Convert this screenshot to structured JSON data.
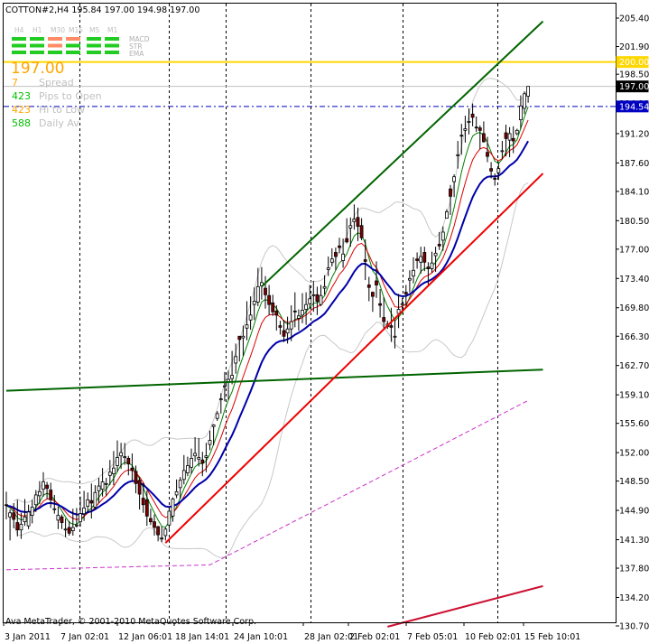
{
  "header": {
    "symbol_line": "COTTON#2,H4  195.84 197.00 194.98 197.00"
  },
  "panel": {
    "timeframes": [
      "H4",
      "H1",
      "M30",
      "M15",
      "M5",
      "M1"
    ],
    "indicators": [
      "MACD",
      "STR",
      "EMA"
    ],
    "price_big": "197.00",
    "rows": [
      {
        "value": "7",
        "label": "Spread",
        "value_color": "#ffa500"
      },
      {
        "value": "423",
        "label": "Pips to Open",
        "value_color": "#00c000"
      },
      {
        "value": "423",
        "label": "Hi to Low",
        "value_color": "#ffa500"
      },
      {
        "value": "588",
        "label": "Daily Av",
        "value_color": "#00c000"
      }
    ]
  },
  "footer": {
    "copyright": "Ava MetaTrader, © 2001-2010 MetaQuotes Software Corp."
  },
  "chart_data": {
    "type": "candlestick",
    "y_ticks": [
      "205.40",
      "201.90",
      "198.50",
      "194.90",
      "191.20",
      "187.60",
      "184.10",
      "180.50",
      "177.00",
      "173.40",
      "169.80",
      "166.30",
      "162.70",
      "159.10",
      "155.60",
      "152.00",
      "148.50",
      "144.90",
      "141.30",
      "137.80",
      "134.20",
      "130.70"
    ],
    "ylim": [
      130.7,
      205.4
    ],
    "x_ticks": [
      "3 Jan 2011",
      "7 Jan 02:01",
      "12 Jan 06:01",
      "18 Jan 14:01",
      "24 Jan 10:01",
      "28 Jan 02:01",
      "2 Feb 02:01",
      "7 Feb 05:01",
      "10 Feb 02:01",
      "15 Feb 10:01"
    ],
    "price_labels": [
      {
        "text": "200.00",
        "value": 200.0,
        "color": "#ffd700",
        "text_color": "#ffffff"
      },
      {
        "text": "197.00",
        "value": 197.0,
        "color": "#000000",
        "text_color": "#ffffff"
      },
      {
        "text": "194.54",
        "value": 194.54,
        "color": "#0000c0",
        "text_color": "#ffffff"
      }
    ],
    "hlines": [
      {
        "value": 200.0,
        "color": "#ffd700",
        "style": "solid"
      },
      {
        "value": 197.0,
        "color": "#c0c0c0",
        "style": "solid"
      },
      {
        "value": 194.54,
        "color": "#0000c0",
        "style": "dashdot"
      }
    ],
    "colors": {
      "bull": "#ffffff",
      "bear": "#800000",
      "wick": "#000000",
      "ma_fast": "#008000",
      "ma_mid": "#dd0000",
      "ma_slow": "#0000aa",
      "bands": "#c8c8c8",
      "ma_long": "#cc33cc",
      "channel": "#006400",
      "trend_red": "#ee0000",
      "trend_crimson": "#cc1133"
    },
    "closes": [
      145.5,
      144.6,
      143.8,
      142.5,
      143.2,
      144.1,
      144.7,
      145.3,
      146.8,
      147.2,
      148.4,
      147.6,
      146.2,
      145.1,
      144.3,
      143.4,
      142.6,
      142.1,
      142.8,
      143.1,
      144.5,
      145.2,
      146.2,
      145.8,
      147.1,
      147.9,
      148.4,
      148.2,
      149.6,
      150.1,
      151.4,
      152.0,
      151.5,
      150.6,
      149.8,
      148.2,
      146.9,
      145.6,
      144.2,
      143.5,
      142.8,
      141.9,
      141.4,
      142.6,
      144.8,
      146.3,
      147.2,
      148.6,
      149.8,
      150.4,
      151.3,
      151.9,
      151.4,
      150.7,
      151.6,
      153.5,
      155.4,
      156.8,
      158.6,
      160.2,
      161.0,
      161.5,
      163.8,
      165.9,
      166.3,
      167.7,
      168.9,
      170.6,
      172.4,
      172.9,
      171.4,
      170.2,
      169.3,
      168.9,
      167.4,
      166.3,
      167.2,
      168.1,
      169.3,
      168.8,
      169.5,
      170.2,
      170.9,
      171.4,
      170.6,
      171.3,
      172.4,
      174.7,
      175.8,
      176.1,
      177.2,
      176.4,
      177.9,
      179.9,
      180.7,
      179.8,
      178.4,
      175.5,
      172.3,
      171.2,
      172.6,
      170.1,
      168.1,
      167.8,
      167.4,
      166.3,
      169.6,
      170.3,
      171.5,
      173.4,
      174.4,
      175.6,
      176.1,
      175.4,
      174.6,
      175.3,
      176.5,
      177.4,
      179.1,
      181.6,
      183.5,
      185.9,
      188.6,
      190.9,
      191.8,
      192.7,
      193.2,
      191.9,
      191.6,
      190.2,
      188.4,
      186.6,
      185.6,
      186.9,
      189.1,
      190.6,
      191.2,
      190.3,
      191.6,
      194.6,
      196.1,
      197.0
    ],
    "candles": [
      {
        "o": 145.6,
        "h": 147.2,
        "l": 143.8,
        "c": 145.5
      },
      {
        "o": 144.1,
        "h": 145.0,
        "l": 141.2,
        "c": 144.6
      },
      {
        "o": 144.6,
        "h": 145.8,
        "l": 142.7,
        "c": 143.8
      },
      {
        "o": 143.4,
        "h": 146.2,
        "l": 141.7,
        "c": 142.5
      },
      {
        "o": 142.5,
        "h": 144.6,
        "l": 141.4,
        "c": 143.2
      },
      {
        "o": 143.5,
        "h": 146.3,
        "l": 143.0,
        "c": 144.1
      },
      {
        "o": 143.0,
        "h": 145.6,
        "l": 142.6,
        "c": 144.7
      },
      {
        "o": 144.3,
        "h": 146.2,
        "l": 143.3,
        "c": 145.3
      },
      {
        "o": 145.6,
        "h": 147.4,
        "l": 144.7,
        "c": 146.8
      },
      {
        "o": 146.7,
        "h": 148.5,
        "l": 145.7,
        "c": 147.2
      },
      {
        "o": 147.5,
        "h": 149.6,
        "l": 146.6,
        "c": 148.4
      },
      {
        "o": 148.0,
        "h": 148.4,
        "l": 146.3,
        "c": 147.6
      },
      {
        "o": 147.4,
        "h": 148.3,
        "l": 145.2,
        "c": 146.2
      },
      {
        "o": 145.1,
        "h": 146.8,
        "l": 144.5,
        "c": 145.1
      },
      {
        "o": 143.7,
        "h": 145.4,
        "l": 142.6,
        "c": 144.3
      },
      {
        "o": 144.1,
        "h": 144.4,
        "l": 142.6,
        "c": 143.4
      },
      {
        "o": 142.6,
        "h": 143.9,
        "l": 141.6,
        "c": 142.6
      },
      {
        "o": 142.8,
        "h": 143.6,
        "l": 141.8,
        "c": 142.1
      },
      {
        "o": 142.4,
        "h": 145.1,
        "l": 141.8,
        "c": 142.8
      },
      {
        "o": 143.0,
        "h": 145.2,
        "l": 142.8,
        "c": 143.1
      },
      {
        "o": 143.5,
        "h": 146.6,
        "l": 142.9,
        "c": 144.5
      },
      {
        "o": 144.5,
        "h": 147.3,
        "l": 143.6,
        "c": 145.2
      },
      {
        "o": 145.4,
        "h": 147.1,
        "l": 144.6,
        "c": 146.2
      },
      {
        "o": 146.1,
        "h": 148.2,
        "l": 143.9,
        "c": 145.8
      },
      {
        "o": 145.3,
        "h": 148.0,
        "l": 145.0,
        "c": 147.1
      },
      {
        "o": 147.3,
        "h": 148.9,
        "l": 145.8,
        "c": 147.9
      },
      {
        "o": 147.5,
        "h": 150.1,
        "l": 146.6,
        "c": 148.4
      },
      {
        "o": 148.2,
        "h": 148.9,
        "l": 146.7,
        "c": 148.2
      },
      {
        "o": 149.2,
        "h": 151.1,
        "l": 148.0,
        "c": 149.6
      },
      {
        "o": 149.4,
        "h": 152.2,
        "l": 148.0,
        "c": 150.1
      },
      {
        "o": 150.4,
        "h": 153.5,
        "l": 149.6,
        "c": 151.4
      },
      {
        "o": 151.6,
        "h": 153.2,
        "l": 150.0,
        "c": 152.0
      },
      {
        "o": 151.4,
        "h": 153.2,
        "l": 150.5,
        "c": 151.5
      },
      {
        "o": 151.3,
        "h": 151.6,
        "l": 149.2,
        "c": 150.6
      },
      {
        "o": 150.1,
        "h": 151.9,
        "l": 148.5,
        "c": 149.8
      },
      {
        "o": 149.7,
        "h": 150.4,
        "l": 147.0,
        "c": 148.2
      },
      {
        "o": 148.6,
        "h": 149.0,
        "l": 145.0,
        "c": 146.9
      },
      {
        "o": 146.4,
        "h": 148.3,
        "l": 144.6,
        "c": 145.6
      },
      {
        "o": 146.2,
        "h": 147.3,
        "l": 143.0,
        "c": 144.2
      },
      {
        "o": 143.9,
        "h": 145.1,
        "l": 143.1,
        "c": 143.5
      },
      {
        "o": 143.5,
        "h": 144.4,
        "l": 141.8,
        "c": 142.8
      },
      {
        "o": 142.9,
        "h": 143.0,
        "l": 141.1,
        "c": 141.9
      },
      {
        "o": 141.5,
        "h": 142.9,
        "l": 141.0,
        "c": 141.4
      },
      {
        "o": 141.8,
        "h": 142.8,
        "l": 141.2,
        "c": 142.6
      },
      {
        "o": 143.1,
        "h": 145.3,
        "l": 142.6,
        "c": 144.8
      },
      {
        "o": 144.2,
        "h": 146.5,
        "l": 143.5,
        "c": 146.3
      },
      {
        "o": 146.8,
        "h": 148.7,
        "l": 146.4,
        "c": 147.2
      },
      {
        "o": 147.7,
        "h": 149.0,
        "l": 146.3,
        "c": 148.6
      },
      {
        "o": 148.7,
        "h": 151.7,
        "l": 148.1,
        "c": 149.8
      },
      {
        "o": 149.5,
        "h": 151.5,
        "l": 149.1,
        "c": 150.4
      },
      {
        "o": 150.2,
        "h": 152.5,
        "l": 149.4,
        "c": 151.3
      },
      {
        "o": 151.6,
        "h": 153.9,
        "l": 150.9,
        "c": 151.9
      },
      {
        "o": 151.2,
        "h": 153.8,
        "l": 150.3,
        "c": 151.4
      },
      {
        "o": 151.1,
        "h": 152.1,
        "l": 149.1,
        "c": 150.7
      },
      {
        "o": 151.4,
        "h": 153.2,
        "l": 149.6,
        "c": 151.6
      },
      {
        "o": 153.0,
        "h": 154.7,
        "l": 152.3,
        "c": 153.5
      },
      {
        "o": 155.2,
        "h": 155.5,
        "l": 152.9,
        "c": 155.4
      },
      {
        "o": 156.2,
        "h": 157.1,
        "l": 155.9,
        "c": 156.8
      },
      {
        "o": 158.6,
        "h": 159.3,
        "l": 156.8,
        "c": 158.6
      },
      {
        "o": 160.1,
        "h": 161.9,
        "l": 158.3,
        "c": 160.2
      },
      {
        "o": 160.7,
        "h": 162.1,
        "l": 158.5,
        "c": 161.0
      },
      {
        "o": 161.1,
        "h": 164.5,
        "l": 160.4,
        "c": 161.5
      },
      {
        "o": 163.0,
        "h": 165.4,
        "l": 161.7,
        "c": 163.8
      },
      {
        "o": 166.3,
        "h": 166.3,
        "l": 163.2,
        "c": 165.9
      },
      {
        "o": 166.1,
        "h": 167.6,
        "l": 163.9,
        "c": 166.3
      },
      {
        "o": 167.3,
        "h": 170.6,
        "l": 165.8,
        "c": 167.7
      },
      {
        "o": 168.3,
        "h": 171.2,
        "l": 167.1,
        "c": 168.9
      },
      {
        "o": 170.2,
        "h": 172.3,
        "l": 168.3,
        "c": 170.6
      },
      {
        "o": 170.5,
        "h": 174.7,
        "l": 170.0,
        "c": 172.4
      },
      {
        "o": 172.5,
        "h": 174.8,
        "l": 170.8,
        "c": 172.9
      },
      {
        "o": 172.2,
        "h": 173.7,
        "l": 169.7,
        "c": 171.4
      },
      {
        "o": 171.3,
        "h": 172.6,
        "l": 168.9,
        "c": 170.2
      },
      {
        "o": 170.4,
        "h": 171.4,
        "l": 168.8,
        "c": 169.3
      },
      {
        "o": 169.4,
        "h": 170.1,
        "l": 167.0,
        "c": 168.9
      },
      {
        "o": 167.6,
        "h": 168.2,
        "l": 166.5,
        "c": 167.4
      },
      {
        "o": 167.0,
        "h": 168.3,
        "l": 165.6,
        "c": 166.3
      },
      {
        "o": 166.7,
        "h": 168.7,
        "l": 165.4,
        "c": 167.2
      },
      {
        "o": 167.2,
        "h": 170.1,
        "l": 165.7,
        "c": 168.1
      },
      {
        "o": 169.4,
        "h": 171.7,
        "l": 167.4,
        "c": 169.3
      },
      {
        "o": 168.5,
        "h": 169.6,
        "l": 167.0,
        "c": 168.8
      },
      {
        "o": 168.9,
        "h": 171.6,
        "l": 167.9,
        "c": 169.5
      },
      {
        "o": 169.6,
        "h": 171.7,
        "l": 167.7,
        "c": 170.2
      },
      {
        "o": 170.3,
        "h": 172.6,
        "l": 169.7,
        "c": 170.9
      },
      {
        "o": 171.3,
        "h": 173.1,
        "l": 169.3,
        "c": 171.4
      },
      {
        "o": 171.4,
        "h": 172.4,
        "l": 168.9,
        "c": 170.6
      },
      {
        "o": 170.2,
        "h": 172.6,
        "l": 170.0,
        "c": 171.3
      },
      {
        "o": 172.2,
        "h": 173.8,
        "l": 171.4,
        "c": 172.4
      },
      {
        "o": 174.5,
        "h": 176.1,
        "l": 173.7,
        "c": 174.7
      },
      {
        "o": 175.4,
        "h": 177.1,
        "l": 174.9,
        "c": 175.8
      },
      {
        "o": 176.6,
        "h": 177.2,
        "l": 174.4,
        "c": 176.1
      },
      {
        "o": 177.4,
        "h": 178.4,
        "l": 176.5,
        "c": 177.2
      },
      {
        "o": 175.6,
        "h": 178.3,
        "l": 174.7,
        "c": 176.4
      },
      {
        "o": 178.3,
        "h": 180.8,
        "l": 177.7,
        "c": 177.9
      },
      {
        "o": 179.6,
        "h": 180.9,
        "l": 177.3,
        "c": 179.9
      },
      {
        "o": 180.4,
        "h": 182.5,
        "l": 179.4,
        "c": 180.7
      },
      {
        "o": 180.9,
        "h": 182.1,
        "l": 178.0,
        "c": 179.8
      },
      {
        "o": 179.9,
        "h": 180.8,
        "l": 178.1,
        "c": 178.4
      },
      {
        "o": 175.7,
        "h": 178.2,
        "l": 173.2,
        "c": 175.5
      },
      {
        "o": 172.6,
        "h": 173.6,
        "l": 170.6,
        "c": 172.3
      },
      {
        "o": 171.7,
        "h": 171.8,
        "l": 169.3,
        "c": 171.2
      },
      {
        "o": 173.1,
        "h": 175.5,
        "l": 171.0,
        "c": 172.6
      },
      {
        "o": 170.3,
        "h": 172.1,
        "l": 168.6,
        "c": 170.1
      },
      {
        "o": 168.6,
        "h": 171.1,
        "l": 167.2,
        "c": 168.1
      },
      {
        "o": 167.5,
        "h": 168.2,
        "l": 167.2,
        "c": 167.8
      },
      {
        "o": 167.6,
        "h": 169.8,
        "l": 165.6,
        "c": 167.4
      },
      {
        "o": 166.2,
        "h": 168.3,
        "l": 164.8,
        "c": 166.3
      },
      {
        "o": 169.1,
        "h": 171.5,
        "l": 167.3,
        "c": 169.6
      },
      {
        "o": 170.2,
        "h": 171.0,
        "l": 169.3,
        "c": 170.3
      },
      {
        "o": 171.7,
        "h": 172.6,
        "l": 170.0,
        "c": 171.5
      },
      {
        "o": 173.2,
        "h": 174.4,
        "l": 171.7,
        "c": 173.4
      },
      {
        "o": 173.7,
        "h": 176.0,
        "l": 172.8,
        "c": 174.4
      },
      {
        "o": 175.8,
        "h": 176.6,
        "l": 174.6,
        "c": 175.6
      },
      {
        "o": 175.4,
        "h": 177.3,
        "l": 174.0,
        "c": 176.1
      },
      {
        "o": 176.6,
        "h": 177.3,
        "l": 174.3,
        "c": 175.4
      },
      {
        "o": 174.8,
        "h": 175.4,
        "l": 172.6,
        "c": 174.6
      },
      {
        "o": 174.6,
        "h": 176.7,
        "l": 174.1,
        "c": 175.3
      },
      {
        "o": 176.2,
        "h": 177.3,
        "l": 174.2,
        "c": 176.5
      },
      {
        "o": 177.6,
        "h": 179.1,
        "l": 176.9,
        "c": 177.4
      },
      {
        "o": 178.1,
        "h": 179.8,
        "l": 176.8,
        "c": 179.1
      },
      {
        "o": 180.8,
        "h": 181.9,
        "l": 180.8,
        "c": 181.6
      },
      {
        "o": 184.4,
        "h": 184.9,
        "l": 181.2,
        "c": 183.5
      },
      {
        "o": 185.3,
        "h": 186.2,
        "l": 183.4,
        "c": 185.9
      },
      {
        "o": 188.6,
        "h": 190.3,
        "l": 186.9,
        "c": 188.6
      },
      {
        "o": 191.0,
        "h": 192.4,
        "l": 188.6,
        "c": 190.9
      },
      {
        "o": 191.6,
        "h": 193.4,
        "l": 190.1,
        "c": 191.8
      },
      {
        "o": 192.6,
        "h": 194.3,
        "l": 191.1,
        "c": 192.7
      },
      {
        "o": 193.6,
        "h": 194.9,
        "l": 192.1,
        "c": 193.2
      },
      {
        "o": 192.0,
        "h": 193.3,
        "l": 191.4,
        "c": 191.9
      },
      {
        "o": 191.9,
        "h": 192.2,
        "l": 189.3,
        "c": 191.6
      },
      {
        "o": 191.2,
        "h": 192.7,
        "l": 190.1,
        "c": 190.2
      },
      {
        "o": 188.9,
        "h": 190.8,
        "l": 187.7,
        "c": 188.4
      },
      {
        "o": 186.9,
        "h": 187.7,
        "l": 185.7,
        "c": 186.6
      },
      {
        "o": 185.7,
        "h": 186.3,
        "l": 184.8,
        "c": 185.6
      },
      {
        "o": 186.4,
        "h": 187.7,
        "l": 185.5,
        "c": 186.9
      },
      {
        "o": 189.1,
        "h": 190.3,
        "l": 188.1,
        "c": 189.1
      },
      {
        "o": 191.3,
        "h": 192.3,
        "l": 188.4,
        "c": 190.6
      },
      {
        "o": 190.4,
        "h": 192.0,
        "l": 188.3,
        "c": 191.2
      },
      {
        "o": 190.6,
        "h": 192.1,
        "l": 188.8,
        "c": 190.3
      },
      {
        "o": 191.2,
        "h": 191.8,
        "l": 191.0,
        "c": 191.6
      },
      {
        "o": 192.9,
        "h": 195.9,
        "l": 191.8,
        "c": 194.6
      },
      {
        "o": 194.3,
        "h": 196.4,
        "l": 193.6,
        "c": 196.1
      },
      {
        "o": 195.8,
        "h": 197.0,
        "l": 195.0,
        "c": 197.0
      }
    ],
    "lines": [
      {
        "name": "",
        "color": "#006400",
        "x1": 69,
        "y1": 172.4,
        "x2": 145,
        "y2": 205.0
      },
      {
        "name": "",
        "color": "#006400",
        "x1": 0,
        "y1": 159.6,
        "x2": 145,
        "y2": 162.2
      },
      {
        "name": "",
        "color": "#ee0000",
        "x1": 43,
        "y1": 140.9,
        "x2": 145,
        "y2": 186.3
      },
      {
        "name": "",
        "color": "#cc1133",
        "x1": 103,
        "y1": 130.6,
        "x2": 145,
        "y2": 135.6
      }
    ]
  }
}
